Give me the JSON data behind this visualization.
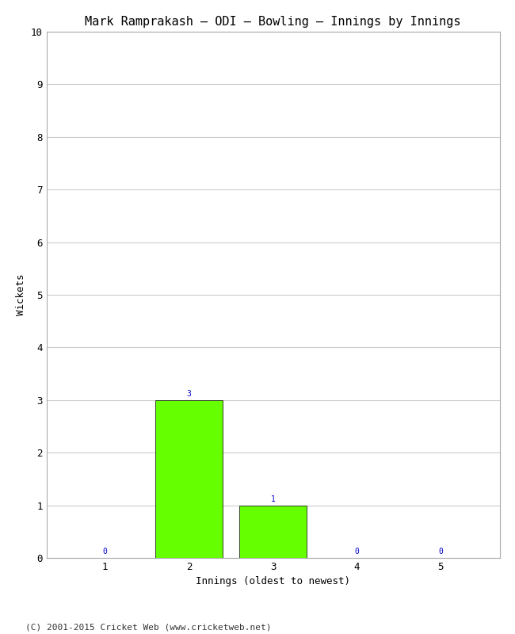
{
  "title": "Mark Ramprakash – ODI – Bowling – Innings by Innings",
  "xlabel": "Innings (oldest to newest)",
  "ylabel": "Wickets",
  "categories": [
    1,
    2,
    3,
    4,
    5
  ],
  "values": [
    0,
    3,
    1,
    0,
    0
  ],
  "bar_color": "#66ff00",
  "bar_edge_color": "#000000",
  "annotation_color": "#0000cc",
  "ylim": [
    0,
    10
  ],
  "yticks": [
    0,
    1,
    2,
    3,
    4,
    5,
    6,
    7,
    8,
    9,
    10
  ],
  "xticks": [
    1,
    2,
    3,
    4,
    5
  ],
  "background_color": "#ffffff",
  "grid_color": "#cccccc",
  "title_fontsize": 11,
  "axis_label_fontsize": 9,
  "tick_fontsize": 9,
  "annotation_fontsize": 7,
  "footer": "(C) 2001-2015 Cricket Web (www.cricketweb.net)",
  "footer_fontsize": 8
}
